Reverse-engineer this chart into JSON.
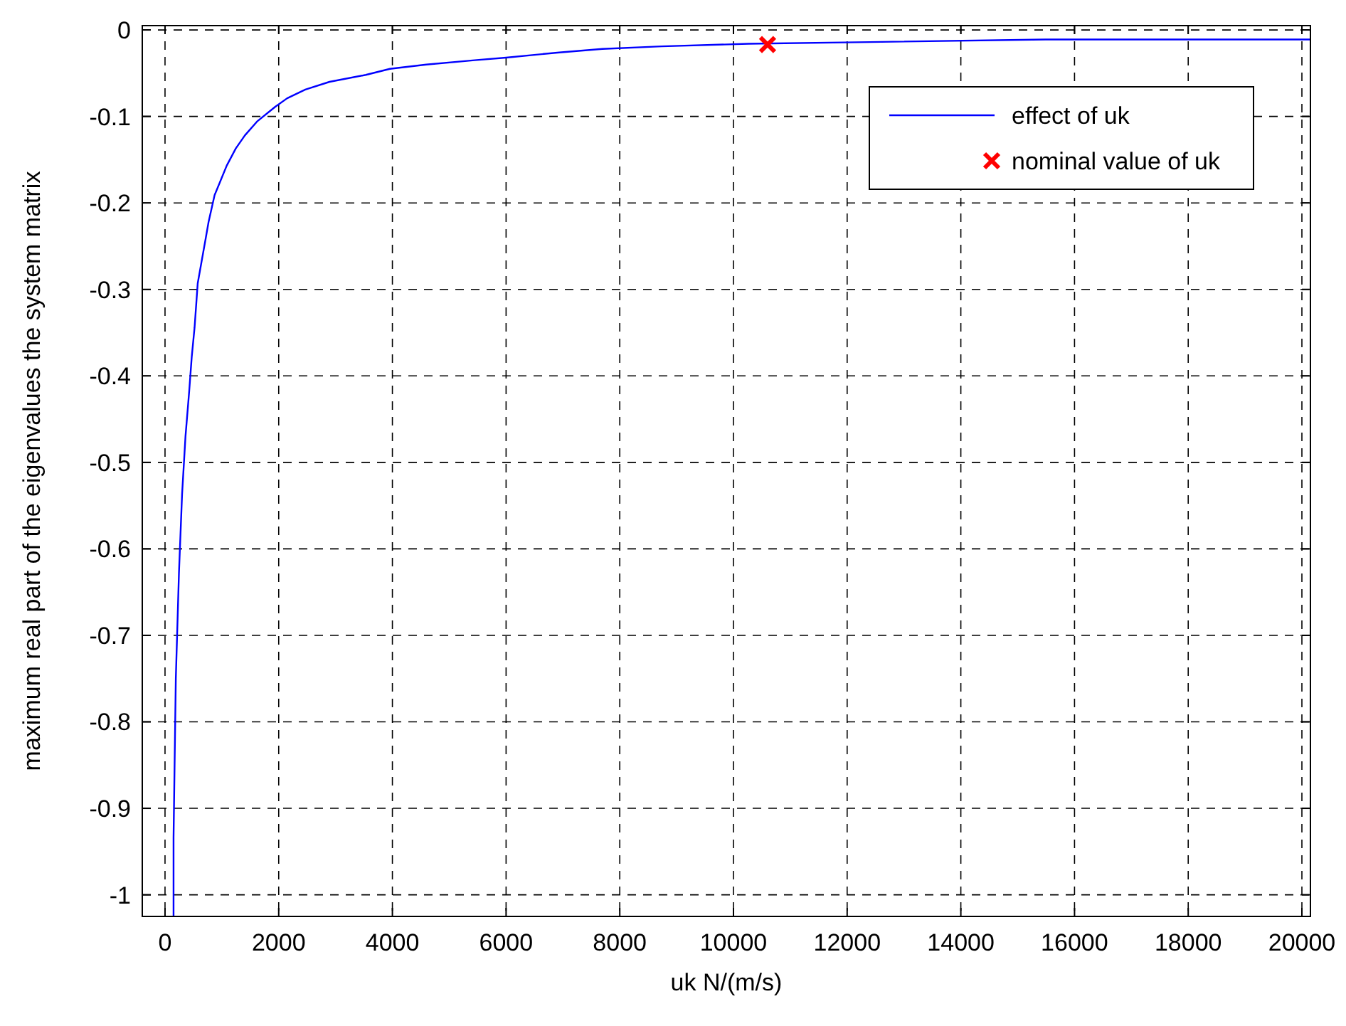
{
  "chart_data": {
    "type": "line",
    "xlabel": "uk N/(m/s)",
    "ylabel": "maximum real part of the eigenvalues the system matrix",
    "xlim": [
      -400,
      20150
    ],
    "ylim": [
      -1.025,
      0.005
    ],
    "xticks": [
      0,
      2000,
      4000,
      6000,
      8000,
      10000,
      12000,
      14000,
      16000,
      18000,
      20000
    ],
    "yticks": [
      0,
      -0.1,
      -0.2,
      -0.3,
      -0.4,
      -0.5,
      -0.6,
      -0.7,
      -0.8,
      -0.9,
      -1
    ],
    "grid": true,
    "legend": "top right",
    "series": [
      {
        "name": "effect of uk",
        "color": "#0000ff",
        "line_style": "solid",
        "marker": "none",
        "x": [
          150,
          150,
          190,
          245,
          300,
          360,
          425,
          470,
          520,
          575,
          640,
          713,
          766,
          872,
          979,
          1085,
          1245,
          1404,
          1617,
          1936,
          2149,
          2468,
          2894,
          3532,
          3957,
          4596,
          5447,
          6000,
          6936,
          7695,
          8740,
          10264,
          12397,
          15488,
          20150
        ],
        "values": [
          -1.025,
          -0.934,
          -0.75,
          -0.628,
          -0.537,
          -0.47,
          -0.418,
          -0.378,
          -0.344,
          -0.293,
          -0.269,
          -0.242,
          -0.222,
          -0.191,
          -0.174,
          -0.157,
          -0.137,
          -0.122,
          -0.106,
          -0.089,
          -0.079,
          -0.069,
          -0.06,
          -0.052,
          -0.045,
          -0.04,
          -0.035,
          -0.032,
          -0.026,
          -0.022,
          -0.019,
          -0.016,
          -0.014,
          -0.011,
          -0.011
        ]
      },
      {
        "name": "nominal value of uk",
        "type": "scatter",
        "color": "#ff0000",
        "marker": "cross",
        "x": [
          10600
        ],
        "values": [
          -0.017
        ]
      }
    ]
  }
}
